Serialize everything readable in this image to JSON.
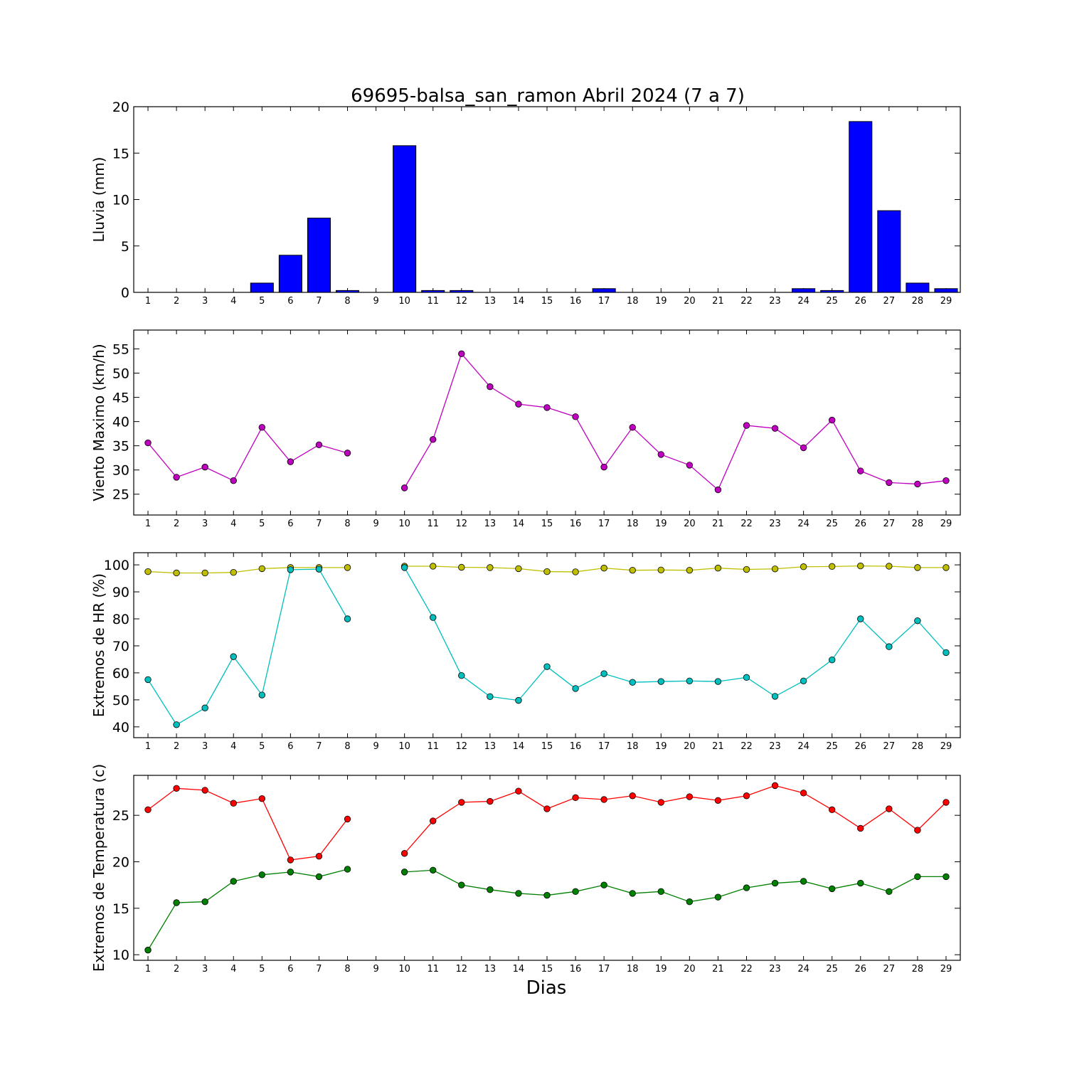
{
  "title": "69695-balsa_san_ramon Abril 2024  (7 a 7)",
  "xlabel": "Dias",
  "chart_data": [
    {
      "type": "bar",
      "ylabel": "Lluvia (mm)",
      "x": [
        1,
        2,
        3,
        4,
        5,
        6,
        7,
        8,
        9,
        10,
        11,
        12,
        13,
        14,
        15,
        16,
        17,
        18,
        19,
        20,
        21,
        22,
        23,
        24,
        25,
        26,
        27,
        28,
        29
      ],
      "ylim": [
        0,
        20
      ],
      "yticks": [
        0,
        5,
        10,
        15,
        20
      ],
      "series": [
        {
          "color": "#0000ff",
          "values": [
            0,
            0,
            0,
            0,
            1.0,
            4.0,
            8.0,
            0.2,
            null,
            15.8,
            0.2,
            0.2,
            0,
            0,
            0,
            0,
            0.4,
            0,
            0,
            0,
            0,
            0,
            0,
            0.4,
            0.2,
            18.4,
            8.8,
            1.0,
            0.4
          ]
        }
      ]
    },
    {
      "type": "line",
      "ylabel": "Viento Maximo (km/h)",
      "x": [
        1,
        2,
        3,
        4,
        5,
        6,
        7,
        8,
        9,
        10,
        11,
        12,
        13,
        14,
        15,
        16,
        17,
        18,
        19,
        20,
        21,
        22,
        23,
        24,
        25,
        26,
        27,
        28,
        29
      ],
      "ylim": [
        20.7,
        58.9
      ],
      "yticks": [
        25,
        30,
        35,
        40,
        45,
        50,
        55
      ],
      "series": [
        {
          "color": "#bf00bf",
          "values": [
            35.6,
            28.5,
            30.6,
            27.8,
            38.8,
            31.7,
            35.2,
            33.5,
            null,
            26.3,
            36.3,
            54.0,
            47.2,
            43.6,
            42.9,
            41.0,
            30.6,
            38.8,
            33.2,
            31.0,
            25.9,
            39.2,
            38.6,
            34.6,
            40.3,
            29.8,
            27.4,
            27.1,
            27.8
          ]
        }
      ]
    },
    {
      "type": "line",
      "ylabel": "Extremos de HR (%)",
      "x": [
        1,
        2,
        3,
        4,
        5,
        6,
        7,
        8,
        9,
        10,
        11,
        12,
        13,
        14,
        15,
        16,
        17,
        18,
        19,
        20,
        21,
        22,
        23,
        24,
        25,
        26,
        27,
        28,
        29
      ],
      "ylim": [
        36,
        104.5
      ],
      "yticks": [
        40,
        50,
        60,
        70,
        80,
        90,
        100
      ],
      "series": [
        {
          "color": "#bfbf00",
          "values": [
            97.5,
            97.0,
            97.0,
            97.2,
            98.6,
            99.0,
            99.0,
            99.0,
            null,
            99.5,
            99.5,
            99.1,
            99.0,
            98.6,
            97.5,
            97.4,
            98.8,
            98.0,
            98.1,
            98.0,
            98.8,
            98.3,
            98.5,
            99.3,
            99.4,
            99.6,
            99.5,
            99.0,
            99.0
          ]
        },
        {
          "color": "#00bfbf",
          "values": [
            57.5,
            40.8,
            47.0,
            66.0,
            51.8,
            98.2,
            98.4,
            80.0,
            null,
            99.0,
            80.5,
            59.0,
            51.2,
            49.8,
            62.3,
            54.2,
            59.7,
            56.5,
            56.8,
            57.0,
            56.8,
            58.3,
            51.3,
            57.0,
            64.8,
            80.0,
            69.7,
            79.3,
            67.5
          ]
        }
      ]
    },
    {
      "type": "line",
      "ylabel": "Extremos de Temperatura (c)",
      "x": [
        1,
        2,
        3,
        4,
        5,
        6,
        7,
        8,
        9,
        10,
        11,
        12,
        13,
        14,
        15,
        16,
        17,
        18,
        19,
        20,
        21,
        22,
        23,
        24,
        25,
        26,
        27,
        28,
        29
      ],
      "ylim": [
        9.4,
        29.3
      ],
      "yticks": [
        10,
        15,
        20,
        25
      ],
      "series": [
        {
          "color": "#ff0000",
          "values": [
            25.6,
            27.9,
            27.7,
            26.3,
            26.8,
            20.2,
            20.6,
            24.6,
            null,
            20.9,
            24.4,
            26.4,
            26.5,
            27.6,
            25.7,
            26.9,
            26.7,
            27.1,
            26.4,
            27.0,
            26.6,
            27.1,
            28.2,
            27.4,
            25.6,
            23.6,
            25.7,
            23.4,
            26.4
          ]
        },
        {
          "color": "#008000",
          "values": [
            10.5,
            15.6,
            15.7,
            17.9,
            18.6,
            18.9,
            18.4,
            19.2,
            null,
            18.9,
            19.1,
            17.5,
            17.0,
            16.6,
            16.4,
            16.8,
            17.5,
            16.6,
            16.8,
            15.7,
            16.2,
            17.2,
            17.7,
            17.9,
            17.1,
            17.7,
            16.8,
            18.4,
            18.4
          ]
        }
      ]
    }
  ]
}
